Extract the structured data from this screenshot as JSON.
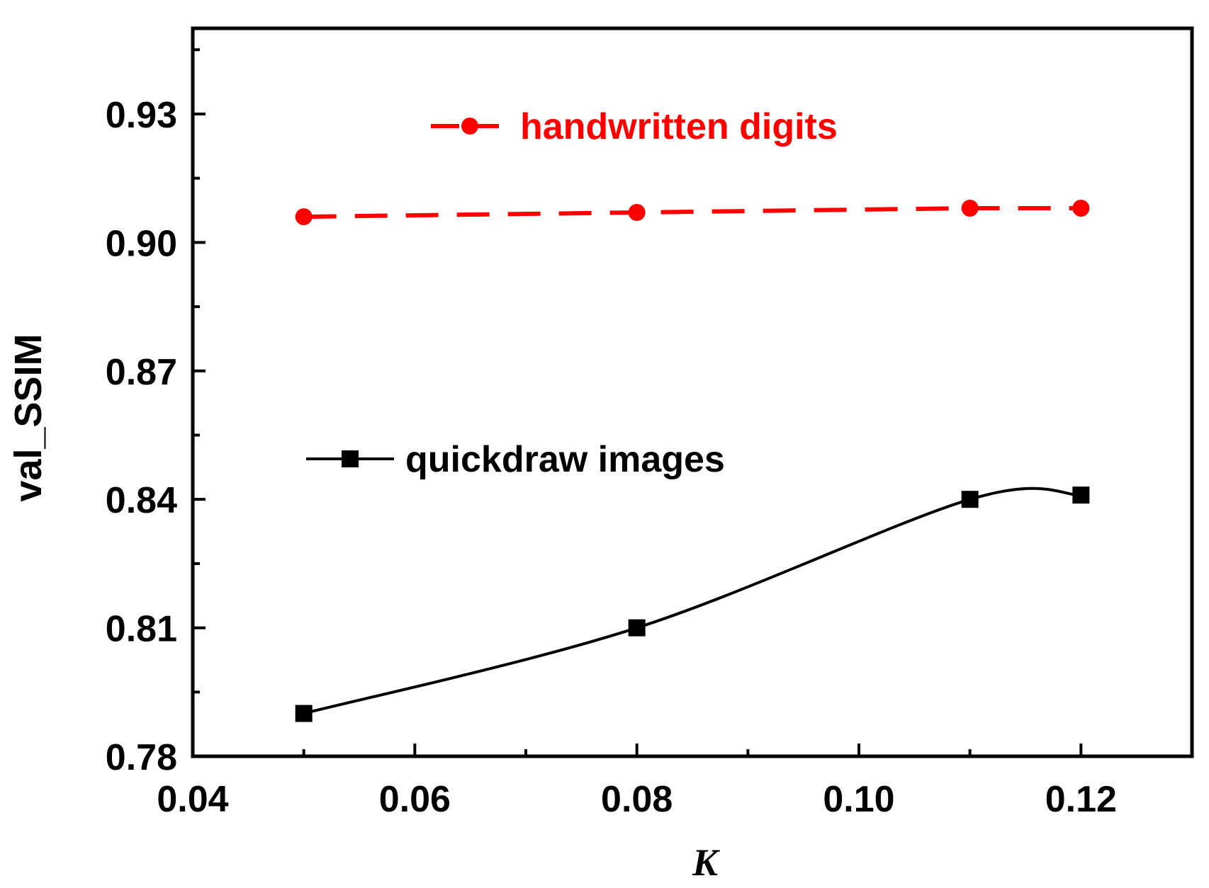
{
  "chart_data": {
    "type": "line",
    "title": "",
    "xlabel": "K",
    "ylabel": "val_SSIM",
    "xlim": [
      0.04,
      0.13
    ],
    "ylim": [
      0.78,
      0.95
    ],
    "x_ticks": [
      "0.04",
      "0.06",
      "0.08",
      "0.10",
      "0.12"
    ],
    "y_ticks": [
      "0.78",
      "0.81",
      "0.84",
      "0.87",
      "0.90",
      "0.93"
    ],
    "x_tick_values": [
      0.04,
      0.06,
      0.08,
      0.1,
      0.12
    ],
    "y_tick_values": [
      0.78,
      0.81,
      0.84,
      0.87,
      0.9,
      0.93
    ],
    "x_minor_tick_values": [
      0.05,
      0.07,
      0.09,
      0.11
    ],
    "y_minor_tick_values": [
      0.795,
      0.825,
      0.855,
      0.885,
      0.915,
      0.945
    ],
    "grid": false,
    "series": [
      {
        "name": "handwritten digits",
        "color": "#ff0000",
        "line_style": "dashed",
        "marker": "circle",
        "x": [
          0.05,
          0.08,
          0.11,
          0.12
        ],
        "y": [
          0.906,
          0.907,
          0.908,
          0.908
        ]
      },
      {
        "name": "quickdraw images",
        "color": "#000000",
        "line_style": "smooth-solid",
        "marker": "square",
        "x": [
          0.05,
          0.08,
          0.11,
          0.12
        ],
        "y": [
          0.79,
          0.81,
          0.84,
          0.841
        ]
      }
    ]
  }
}
